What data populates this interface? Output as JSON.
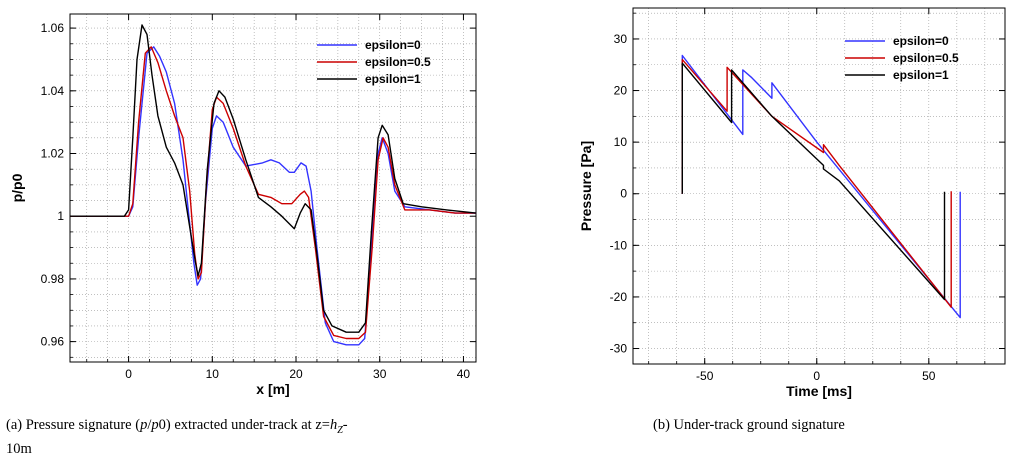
{
  "chart_data": [
    {
      "type": "line",
      "xlabel": "x [m]",
      "ylabel": "p/p0",
      "xlim": [
        -7,
        41.5
      ],
      "ylim": [
        0.9535,
        1.0645
      ],
      "xticks": [
        0,
        10,
        20,
        30,
        40
      ],
      "xtick_labels": [
        "0",
        "10",
        "20",
        "30",
        "40"
      ],
      "yticks": [
        0.96,
        0.98,
        1.0,
        1.02,
        1.04,
        1.06
      ],
      "ytick_labels": [
        "0.96",
        "0.98",
        "1",
        "1.02",
        "1.04",
        "1.06"
      ],
      "grid": true,
      "legend": "top-right",
      "caption": "(a) Pressure signature (p/p0) extracted under-track at z=h_Z-10m",
      "series": [
        {
          "name": "epsilon=0",
          "color": "#3333ff",
          "points": [
            [
              -7,
              1.0
            ],
            [
              0,
              1.0
            ],
            [
              0.5,
              1.003
            ],
            [
              1.2,
              1.025
            ],
            [
              2.2,
              1.052
            ],
            [
              3.0,
              1.054
            ],
            [
              3.7,
              1.051
            ],
            [
              4.5,
              1.046
            ],
            [
              5.5,
              1.036
            ],
            [
              6.5,
              1.018
            ],
            [
              7.2,
              1.0
            ],
            [
              7.8,
              0.985
            ],
            [
              8.2,
              0.978
            ],
            [
              8.6,
              0.98
            ],
            [
              9.2,
              1.005
            ],
            [
              10.0,
              1.028
            ],
            [
              10.5,
              1.032
            ],
            [
              11.3,
              1.03
            ],
            [
              12.5,
              1.022
            ],
            [
              14.0,
              1.016
            ],
            [
              16.0,
              1.017
            ],
            [
              17.0,
              1.018
            ],
            [
              18.0,
              1.017
            ],
            [
              19.2,
              1.014
            ],
            [
              19.8,
              1.014
            ],
            [
              20.6,
              1.017
            ],
            [
              21.2,
              1.016
            ],
            [
              21.8,
              1.008
            ],
            [
              22.5,
              0.99
            ],
            [
              23.5,
              0.966
            ],
            [
              24.5,
              0.96
            ],
            [
              26.0,
              0.959
            ],
            [
              27.5,
              0.959
            ],
            [
              28.2,
              0.961
            ],
            [
              29.0,
              0.99
            ],
            [
              29.8,
              1.02
            ],
            [
              30.3,
              1.025
            ],
            [
              31.0,
              1.02
            ],
            [
              31.8,
              1.008
            ],
            [
              33.0,
              1.003
            ],
            [
              36.0,
              1.002
            ],
            [
              39.0,
              1.001
            ],
            [
              41.5,
              1.001
            ]
          ]
        },
        {
          "name": "epsilon=0.5",
          "color": "#cc0000",
          "points": [
            [
              -7,
              1.0
            ],
            [
              0,
              1.0
            ],
            [
              0.5,
              1.004
            ],
            [
              1.2,
              1.03
            ],
            [
              2.0,
              1.052
            ],
            [
              2.7,
              1.054
            ],
            [
              3.5,
              1.049
            ],
            [
              4.5,
              1.04
            ],
            [
              5.5,
              1.032
            ],
            [
              6.5,
              1.025
            ],
            [
              7.3,
              1.008
            ],
            [
              7.9,
              0.988
            ],
            [
              8.3,
              0.98
            ],
            [
              8.7,
              0.982
            ],
            [
              9.3,
              1.01
            ],
            [
              10.0,
              1.034
            ],
            [
              10.5,
              1.038
            ],
            [
              11.3,
              1.036
            ],
            [
              12.5,
              1.028
            ],
            [
              14.0,
              1.016
            ],
            [
              15.5,
              1.007
            ],
            [
              17.0,
              1.006
            ],
            [
              18.3,
              1.004
            ],
            [
              19.5,
              1.004
            ],
            [
              20.5,
              1.007
            ],
            [
              21.0,
              1.008
            ],
            [
              21.5,
              1.006
            ],
            [
              22.3,
              0.99
            ],
            [
              23.3,
              0.968
            ],
            [
              24.5,
              0.962
            ],
            [
              26.0,
              0.961
            ],
            [
              27.5,
              0.961
            ],
            [
              28.3,
              0.963
            ],
            [
              29.1,
              0.99
            ],
            [
              29.8,
              1.018
            ],
            [
              30.4,
              1.025
            ],
            [
              31.0,
              1.022
            ],
            [
              31.8,
              1.01
            ],
            [
              33.0,
              1.002
            ],
            [
              36.0,
              1.002
            ],
            [
              39.0,
              1.001
            ],
            [
              41.5,
              1.001
            ]
          ]
        },
        {
          "name": "epsilon=1",
          "color": "#000000",
          "points": [
            [
              -7,
              1.0
            ],
            [
              -0.5,
              1.0
            ],
            [
              0,
              1.002
            ],
            [
              0.5,
              1.025
            ],
            [
              1.0,
              1.05
            ],
            [
              1.6,
              1.061
            ],
            [
              2.2,
              1.058
            ],
            [
              2.8,
              1.045
            ],
            [
              3.5,
              1.032
            ],
            [
              4.5,
              1.022
            ],
            [
              5.5,
              1.017
            ],
            [
              6.5,
              1.01
            ],
            [
              7.4,
              0.995
            ],
            [
              8.0,
              0.985
            ],
            [
              8.3,
              0.981
            ],
            [
              8.7,
              0.985
            ],
            [
              9.4,
              1.015
            ],
            [
              10.2,
              1.036
            ],
            [
              10.8,
              1.04
            ],
            [
              11.5,
              1.038
            ],
            [
              12.5,
              1.031
            ],
            [
              14.0,
              1.018
            ],
            [
              15.5,
              1.006
            ],
            [
              17.0,
              1.003
            ],
            [
              18.3,
              1.0
            ],
            [
              19.8,
              0.996
            ],
            [
              20.5,
              1.001
            ],
            [
              21.1,
              1.004
            ],
            [
              21.8,
              1.002
            ],
            [
              22.5,
              0.988
            ],
            [
              23.3,
              0.97
            ],
            [
              24.3,
              0.965
            ],
            [
              26.0,
              0.963
            ],
            [
              27.5,
              0.963
            ],
            [
              28.3,
              0.966
            ],
            [
              29.0,
              0.995
            ],
            [
              29.8,
              1.025
            ],
            [
              30.3,
              1.029
            ],
            [
              31.0,
              1.026
            ],
            [
              31.8,
              1.012
            ],
            [
              32.8,
              1.004
            ],
            [
              35.0,
              1.003
            ],
            [
              38.0,
              1.002
            ],
            [
              41.5,
              1.001
            ]
          ]
        }
      ]
    },
    {
      "type": "line",
      "xlabel": "Time [ms]",
      "ylabel": "Pressure [Pa]",
      "xlim": [
        -82,
        84
      ],
      "ylim": [
        -33,
        36
      ],
      "xticks": [
        -50,
        0,
        50
      ],
      "xtick_labels": [
        "-50",
        "0",
        "50"
      ],
      "yticks": [
        -30,
        -20,
        -10,
        0,
        10,
        20,
        30
      ],
      "ytick_labels": [
        "-30",
        "-20",
        "-10",
        "0",
        "10",
        "20",
        "30"
      ],
      "grid": true,
      "legend": "top-right",
      "caption": "(b) Under-track ground signature",
      "series": [
        {
          "name": "epsilon=0",
          "color": "#3333ff",
          "points": [
            [
              -60,
              0
            ],
            [
              -60,
              26.8
            ],
            [
              -33,
              11.5
            ],
            [
              -33,
              24.0
            ],
            [
              -29,
              22.5
            ],
            [
              -20,
              18.5
            ],
            [
              -20,
              21.5
            ],
            [
              0,
              10.0
            ],
            [
              64,
              -24.0
            ],
            [
              64,
              0.4
            ]
          ]
        },
        {
          "name": "epsilon=0.5",
          "color": "#cc0000",
          "points": [
            [
              -60,
              0
            ],
            [
              -60,
              26.0
            ],
            [
              -40,
              16.0
            ],
            [
              -40,
              24.5
            ],
            [
              -20,
              15.0
            ],
            [
              3,
              8.0
            ],
            [
              3,
              9.5
            ],
            [
              10,
              5.5
            ],
            [
              60,
              -22.0
            ],
            [
              60,
              0.5
            ]
          ]
        },
        {
          "name": "epsilon=1",
          "color": "#000000",
          "points": [
            [
              -60,
              0
            ],
            [
              -60,
              25.3
            ],
            [
              -38,
              13.8
            ],
            [
              -38,
              24.0
            ],
            [
              -20,
              15.0
            ],
            [
              3,
              5.5
            ],
            [
              3,
              4.8
            ],
            [
              10,
              2.5
            ],
            [
              57,
              -20.5
            ],
            [
              57,
              0.4
            ]
          ]
        }
      ]
    }
  ]
}
